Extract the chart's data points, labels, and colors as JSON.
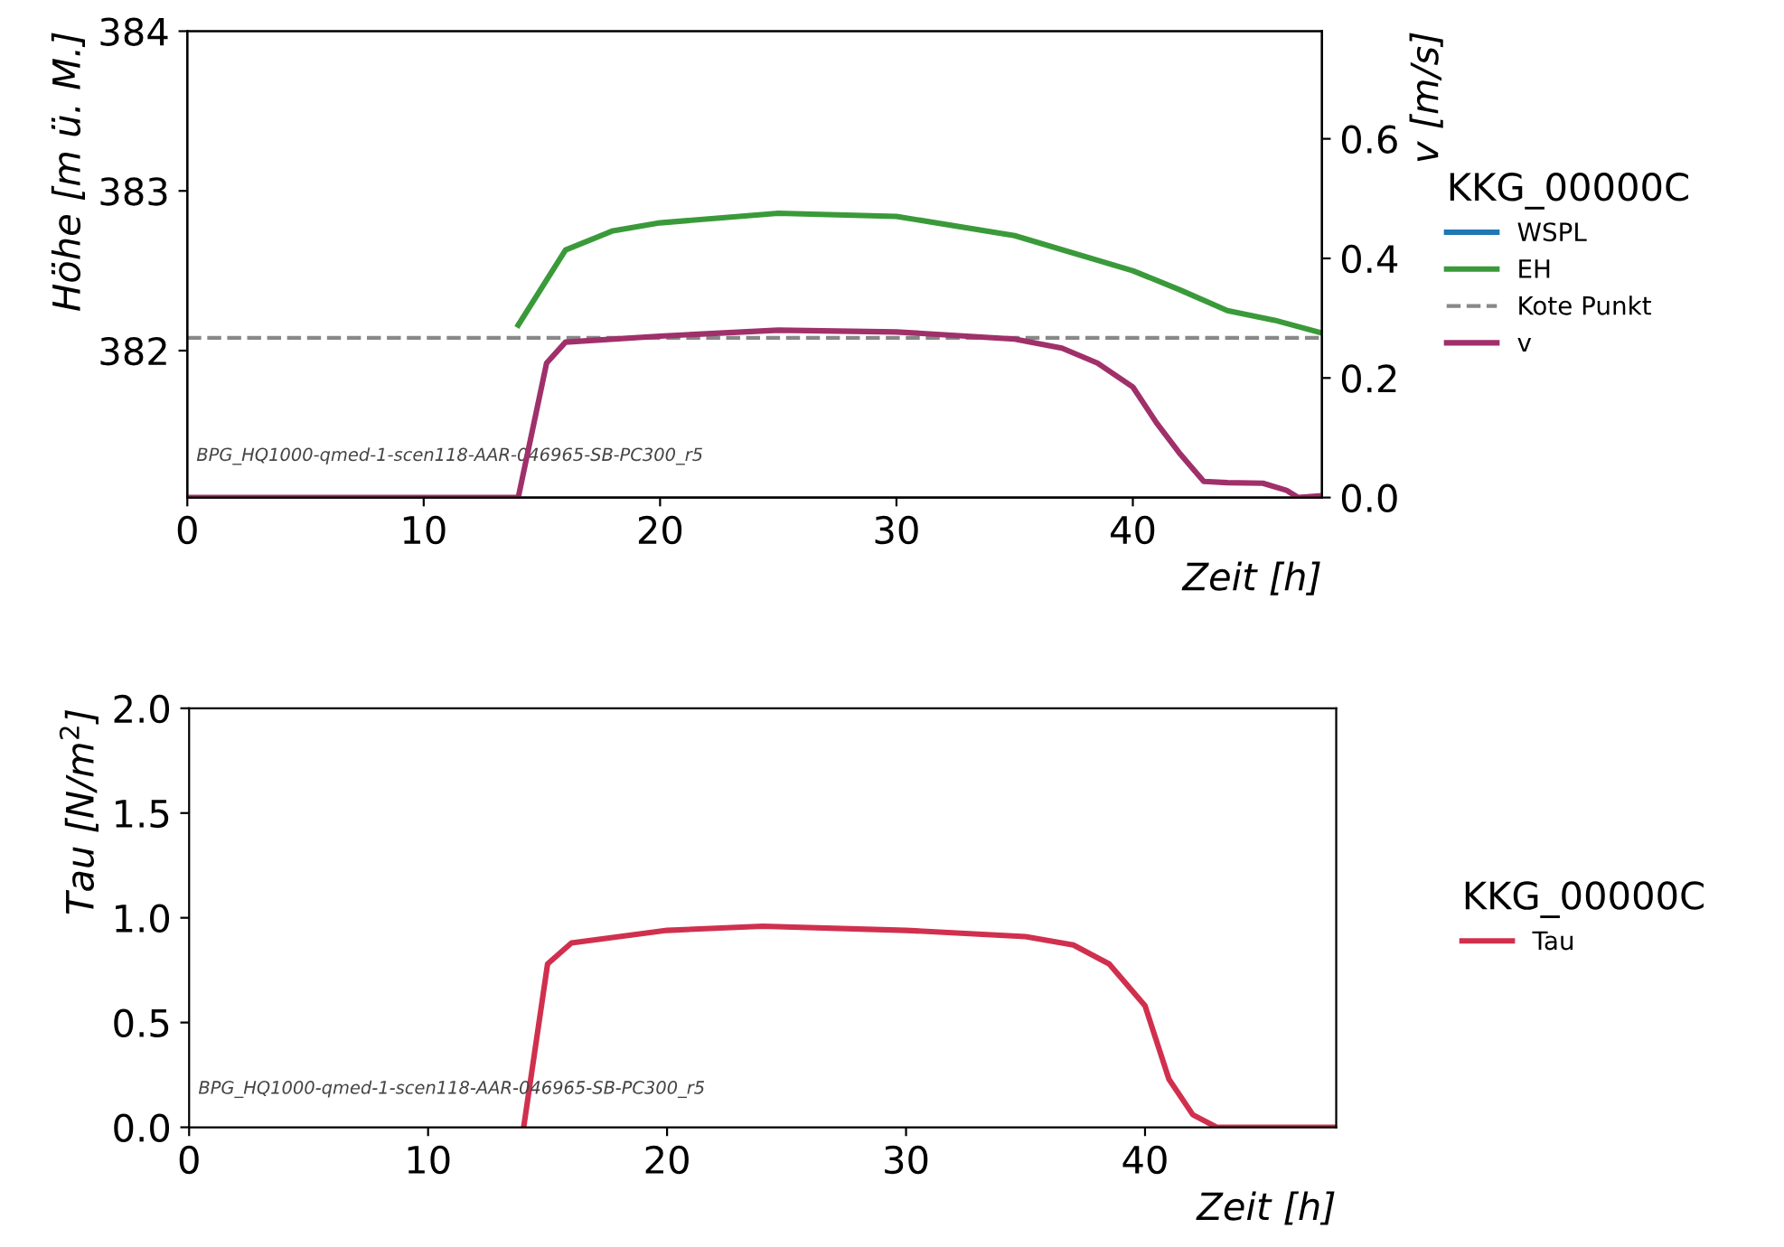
{
  "chart_data": [
    {
      "type": "line",
      "xlabel": "Zeit [h]",
      "ylabel": "Höhe [m ü. M.]",
      "y2label": "v [m/s]",
      "legend_title": "KKG_00000C",
      "legend": "right",
      "grid": false,
      "xlim": [
        0,
        48
      ],
      "xticks": [
        0,
        10,
        20,
        30,
        40
      ],
      "ylim": [
        381.08,
        384
      ],
      "yticks": [
        382,
        383,
        384
      ],
      "y2lim": [
        0,
        0.78
      ],
      "y2ticks": [
        {
          "value": 0,
          "label": "0.0"
        },
        {
          "value": 0.2,
          "label": "0.2"
        },
        {
          "value": 0.4,
          "label": "0.4"
        },
        {
          "value": 0.6,
          "label": "0.6"
        }
      ],
      "series": [
        {
          "name": "WSPL",
          "color": "#1f77b4",
          "values": [
            null,
            null
          ]
        },
        {
          "name": "EH",
          "color": "#3a9a3a",
          "x": [
            14,
            16,
            18,
            20,
            25,
            30,
            35,
            40,
            42,
            44,
            46,
            48
          ],
          "values": [
            382.16,
            382.63,
            382.75,
            382.8,
            382.86,
            382.84,
            382.72,
            382.5,
            382.38,
            382.25,
            382.19,
            382.11
          ]
        },
        {
          "name": "v",
          "color": "#a0306a",
          "axis": "y2",
          "x": [
            0,
            14,
            15.2,
            16,
            20,
            25,
            30,
            35,
            37,
            38.5,
            40,
            41,
            42,
            43,
            44,
            45.5,
            46.5,
            47,
            48
          ],
          "values": [
            0,
            0,
            0.225,
            0.26,
            0.27,
            0.28,
            0.277,
            0.265,
            0.25,
            0.225,
            0.185,
            0.125,
            0.073,
            0.027,
            0.025,
            0.024,
            0.012,
            0,
            0.003
          ]
        }
      ],
      "ref_lines": [
        {
          "axis": "y",
          "value": 382.08,
          "label": "Kote Punkt",
          "color": "#888888",
          "line_style": "dashed"
        }
      ],
      "annotations": [
        "BPG_HQ1000-qmed-1-scen118-AAR-046965-SB-PC300_r5"
      ]
    },
    {
      "type": "line",
      "xlabel": "Zeit [h]",
      "ylabel": "Tau [N/m$^{2}$]",
      "legend_title": "KKG_00000C",
      "legend": "right",
      "grid": false,
      "xlim": [
        0,
        48
      ],
      "xticks": [
        0,
        10,
        20,
        30,
        40
      ],
      "ylim": [
        0,
        2
      ],
      "yticks": [
        {
          "value": 0,
          "label": "0.0"
        },
        {
          "value": 0.5,
          "label": "0.5"
        },
        {
          "value": 1,
          "label": "1.0"
        },
        {
          "value": 1.5,
          "label": "1.5"
        },
        {
          "value": 2,
          "label": "2.0"
        }
      ],
      "series": [
        {
          "name": "Tau",
          "color": "#d0304e",
          "x": [
            14,
            15,
            16,
            20,
            24,
            30,
            35,
            37,
            38.5,
            40,
            41,
            42,
            43,
            48
          ],
          "values": [
            0,
            0.78,
            0.88,
            0.94,
            0.96,
            0.94,
            0.91,
            0.87,
            0.78,
            0.58,
            0.23,
            0.06,
            0,
            0
          ]
        }
      ],
      "annotations": [
        "BPG_HQ1000-qmed-1-scen118-AAR-046965-SB-PC300_r5"
      ]
    }
  ]
}
